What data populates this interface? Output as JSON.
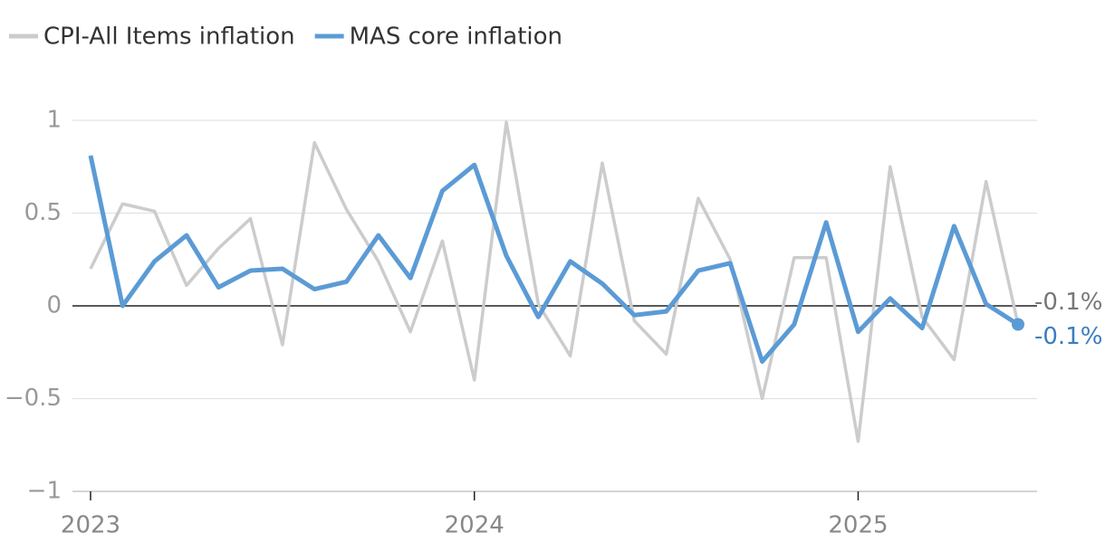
{
  "chart_data": {
    "type": "line",
    "categories": [
      "2023",
      null,
      null,
      null,
      null,
      null,
      null,
      null,
      null,
      null,
      null,
      null,
      "2024",
      null,
      null,
      null,
      null,
      null,
      null,
      null,
      null,
      null,
      null,
      null,
      "2025",
      null,
      null,
      null,
      null,
      null
    ],
    "series": [
      {
        "name": "CPI-All Items inflation",
        "color": "#cccccc",
        "end_label": "-0.1%",
        "values": [
          0.2,
          0.55,
          0.51,
          0.11,
          0.31,
          0.47,
          -0.21,
          0.88,
          0.52,
          0.24,
          -0.14,
          0.35,
          -0.4,
          0.99,
          0.01,
          -0.27,
          0.77,
          -0.08,
          -0.26,
          0.58,
          0.25,
          -0.5,
          0.26,
          0.26,
          -0.73,
          0.75,
          -0.06,
          -0.29,
          0.67,
          -0.1
        ]
      },
      {
        "name": "MAS core inflation",
        "color": "#5b9bd5",
        "end_label": "-0.1%",
        "values": [
          0.81,
          0.0,
          0.24,
          0.38,
          0.1,
          0.19,
          0.2,
          0.09,
          0.13,
          0.38,
          0.15,
          0.62,
          0.76,
          0.27,
          -0.06,
          0.24,
          0.12,
          -0.05,
          -0.03,
          0.19,
          0.23,
          -0.3,
          -0.1,
          0.45,
          -0.14,
          0.04,
          -0.12,
          0.43,
          0.01,
          -0.1
        ]
      }
    ],
    "ylim": [
      -1,
      1
    ],
    "yticks": [
      {
        "value": -1,
        "label": "−1"
      },
      {
        "value": -0.5,
        "label": "−0.5"
      },
      0,
      0.5,
      1
    ],
    "grid": true
  }
}
